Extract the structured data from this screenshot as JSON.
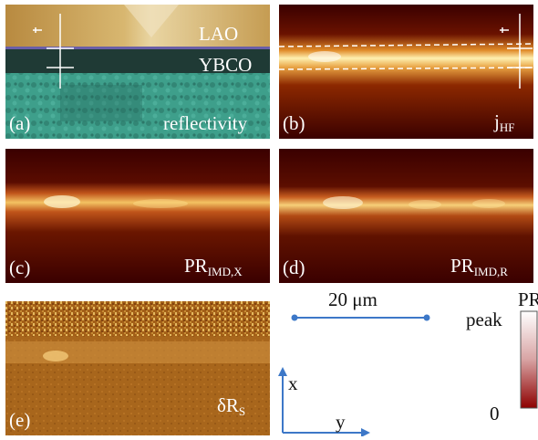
{
  "panels": {
    "a": {
      "letter": "(a)",
      "layer_top": "LAO",
      "layer_mid": "YBCO",
      "caption": "reflectivity"
    },
    "b": {
      "letter": "(b)",
      "caption_main": "j",
      "caption_sub": "HF"
    },
    "c": {
      "letter": "(c)",
      "caption_main": "PR",
      "caption_sub": "IMD,X"
    },
    "d": {
      "letter": "(d)",
      "caption_main": "PR",
      "caption_sub": "IMD,R"
    },
    "e": {
      "letter": "(e)",
      "caption_main": "δR",
      "caption_sub": "S"
    }
  },
  "scale_bar": {
    "label": "20 μm",
    "color": "#3d78c8"
  },
  "axes": {
    "x_label": "x",
    "y_label": "y",
    "color": "#3d78c8"
  },
  "colorbar": {
    "title": "PR",
    "top_label": "peak",
    "bottom_label": "0"
  },
  "colors": {
    "lao": "#c8a050",
    "ybco": "#1e3a35",
    "substrate": "#3d9e8c",
    "heat_dark": "#400000",
    "heat_mid": "#c04a00",
    "heat_peak": "#fff6c0",
    "dr_base": "#a8661c"
  }
}
